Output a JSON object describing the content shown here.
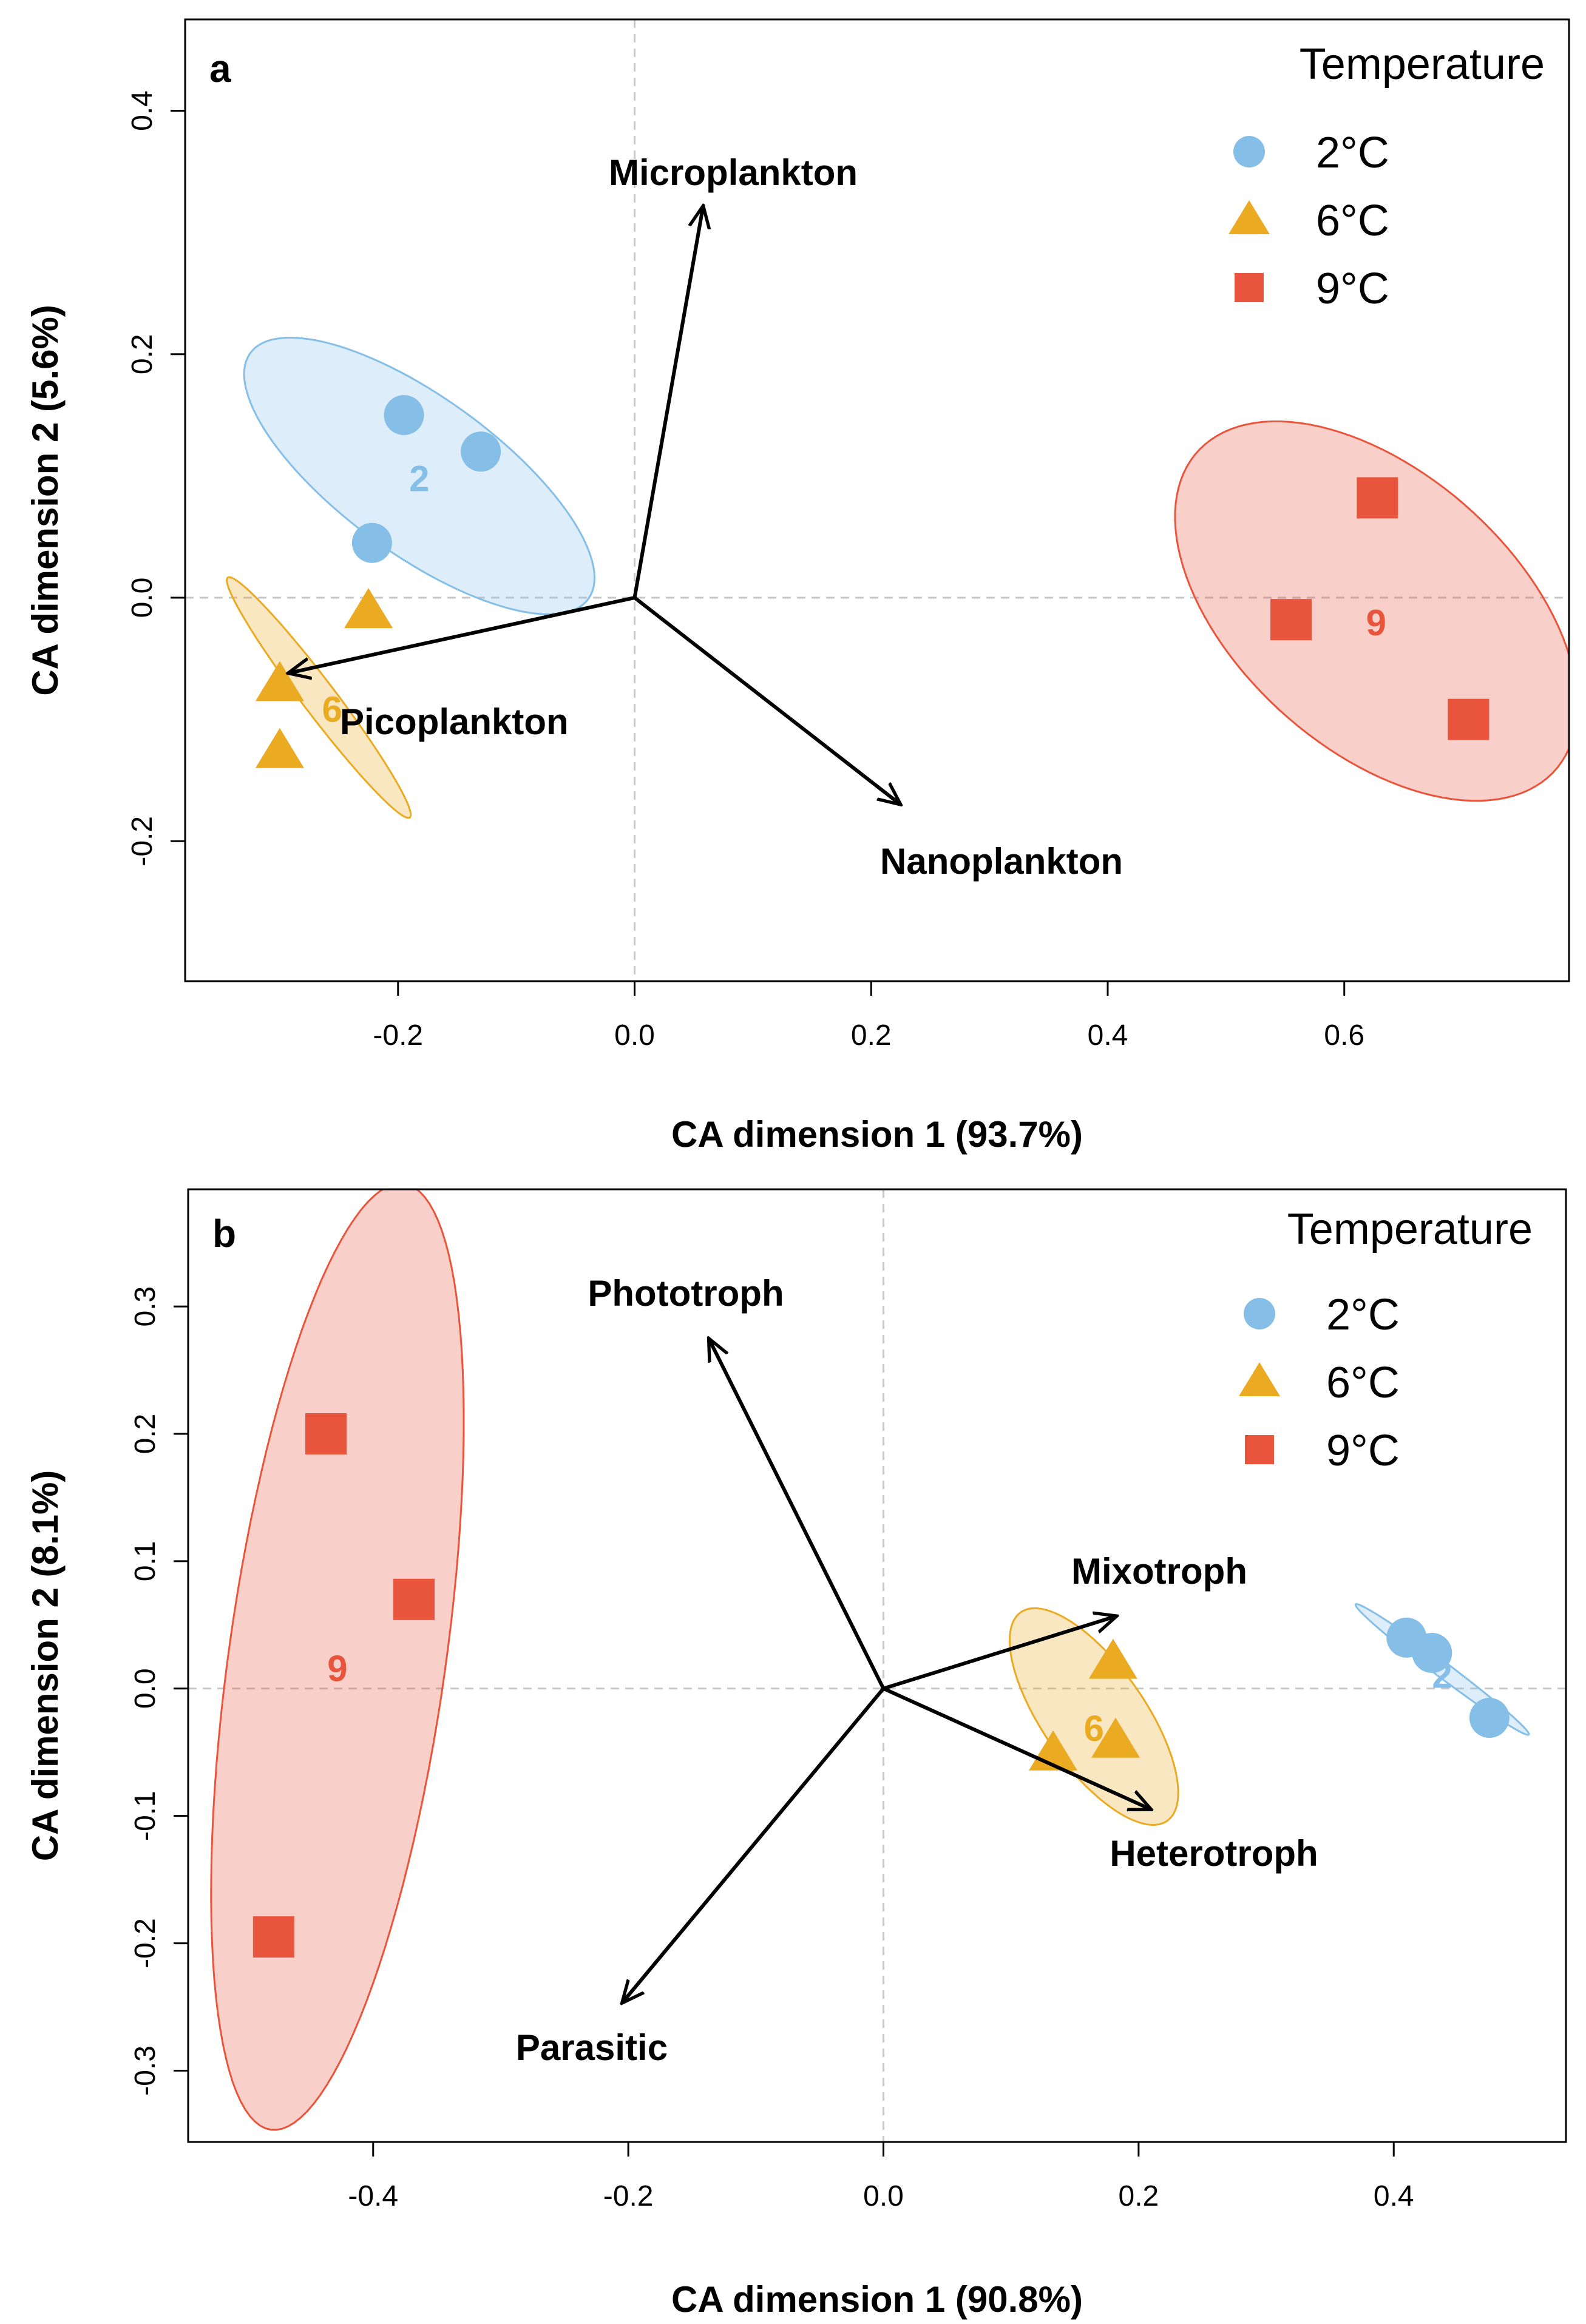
{
  "legend": {
    "title": "Temperature",
    "entries": [
      {
        "label": "2°C",
        "shape": "circle",
        "color": "#85bfe8"
      },
      {
        "label": "6°C",
        "shape": "triangle",
        "color": "#eaaa22"
      },
      {
        "label": "9°C",
        "shape": "square",
        "color": "#e9553c"
      }
    ]
  },
  "chart_data": [
    {
      "type": "scatter",
      "panel": "a",
      "xlabel": "CA dimension 1 (93.7%)",
      "ylabel": "CA dimension 2 (5.6%)",
      "xlim": [
        -0.38,
        0.79
      ],
      "ylim": [
        -0.315,
        0.475
      ],
      "xticks": [
        -0.2,
        0.0,
        0.2,
        0.4,
        0.6
      ],
      "yticks": [
        -0.2,
        0.0,
        0.2,
        0.4
      ],
      "xtick_labels": [
        "-0.2",
        "0.0",
        "0.2",
        "0.4",
        "0.6"
      ],
      "ytick_labels": [
        "-0.2",
        "0.0",
        "0.2",
        "0.4"
      ],
      "reference_lines": {
        "x": 0,
        "y": 0,
        "style": "dashed"
      },
      "legend_position": "top-right",
      "series": [
        {
          "name": "2°C",
          "centroid_label": "2",
          "color": "#85bfe8",
          "shape": "circle",
          "points": [
            [
              -0.195,
              0.15
            ],
            [
              -0.13,
              0.12
            ],
            [
              -0.222,
              0.045
            ]
          ],
          "ellipse": {
            "center": [
              -0.182,
              0.1
            ],
            "rx": 0.175,
            "ry": 0.065,
            "angle_deg": -35
          }
        },
        {
          "name": "6°C",
          "centroid_label": "6",
          "color": "#eaaa22",
          "shape": "triangle",
          "points": [
            [
              -0.225,
              -0.01
            ],
            [
              -0.3,
              -0.07
            ],
            [
              -0.3,
              -0.125
            ]
          ],
          "ellipse": {
            "center": [
              -0.267,
              -0.082
            ],
            "rx": 0.125,
            "ry": 0.014,
            "angle_deg": -52
          }
        },
        {
          "name": "9°C",
          "centroid_label": "9",
          "color": "#e9553c",
          "shape": "square",
          "points": [
            [
              0.628,
              0.082
            ],
            [
              0.555,
              -0.018
            ],
            [
              0.705,
              -0.1
            ]
          ],
          "ellipse": {
            "center": [
              0.627,
              -0.011
            ],
            "rx": 0.2,
            "ry": 0.115,
            "angle_deg": -40
          }
        }
      ],
      "arrows": [
        {
          "label": "Microplankton",
          "end": [
            0.058,
            0.322
          ]
        },
        {
          "label": "Picoplankton",
          "end": [
            -0.293,
            -0.062
          ]
        },
        {
          "label": "Nanoplankton",
          "end": [
            0.225,
            -0.17
          ]
        }
      ]
    },
    {
      "type": "scatter",
      "panel": "b",
      "xlabel": "CA dimension 1 (90.8%)",
      "ylabel": "CA dimension 2 (8.1%)",
      "xlim": [
        -0.545,
        0.535
      ],
      "ylim": [
        -0.356,
        0.392
      ],
      "xticks": [
        -0.4,
        -0.2,
        0.0,
        0.2,
        0.4
      ],
      "yticks": [
        -0.3,
        -0.2,
        -0.1,
        0.0,
        0.1,
        0.2,
        0.3
      ],
      "xtick_labels": [
        "-0.4",
        "-0.2",
        "0.0",
        "0.2",
        "0.4"
      ],
      "ytick_labels": [
        "-0.3",
        "-0.2",
        "-0.1",
        "0.0",
        "0.1",
        "0.2",
        "0.3"
      ],
      "reference_lines": {
        "x": 0,
        "y": 0,
        "style": "dashed"
      },
      "legend_position": "top-right",
      "series": [
        {
          "name": "2°C",
          "centroid_label": "2",
          "color": "#85bfe8",
          "shape": "circle",
          "points": [
            [
              0.41,
              0.04
            ],
            [
              0.43,
              0.028
            ],
            [
              0.475,
              -0.023
            ]
          ],
          "ellipse": {
            "center": [
              0.438,
              0.015
            ],
            "rx": 0.085,
            "ry": 0.006,
            "angle_deg": -37
          }
        },
        {
          "name": "6°C",
          "centroid_label": "6",
          "color": "#eaaa22",
          "shape": "triangle",
          "points": [
            [
              0.18,
              0.022
            ],
            [
              0.133,
              -0.05
            ],
            [
              0.182,
              -0.04
            ]
          ],
          "ellipse": {
            "center": [
              0.165,
              -0.022
            ],
            "rx": 0.1,
            "ry": 0.04,
            "angle_deg": -55
          }
        },
        {
          "name": "9°C",
          "centroid_label": "9",
          "color": "#e9553c",
          "shape": "square",
          "points": [
            [
              -0.437,
              0.2
            ],
            [
              -0.368,
              0.07
            ],
            [
              -0.478,
              -0.195
            ]
          ],
          "ellipse": {
            "center": [
              -0.428,
              0.025
            ],
            "rx": 0.375,
            "ry": 0.085,
            "angle_deg": 82
          }
        }
      ],
      "arrows": [
        {
          "label": "Phototroph",
          "end": [
            -0.137,
            0.275
          ]
        },
        {
          "label": "Mixotroph",
          "end": [
            0.183,
            0.057
          ]
        },
        {
          "label": "Heterotroph",
          "end": [
            0.21,
            -0.095
          ]
        },
        {
          "label": "Parasitic",
          "end": [
            -0.205,
            -0.247
          ]
        }
      ]
    }
  ]
}
